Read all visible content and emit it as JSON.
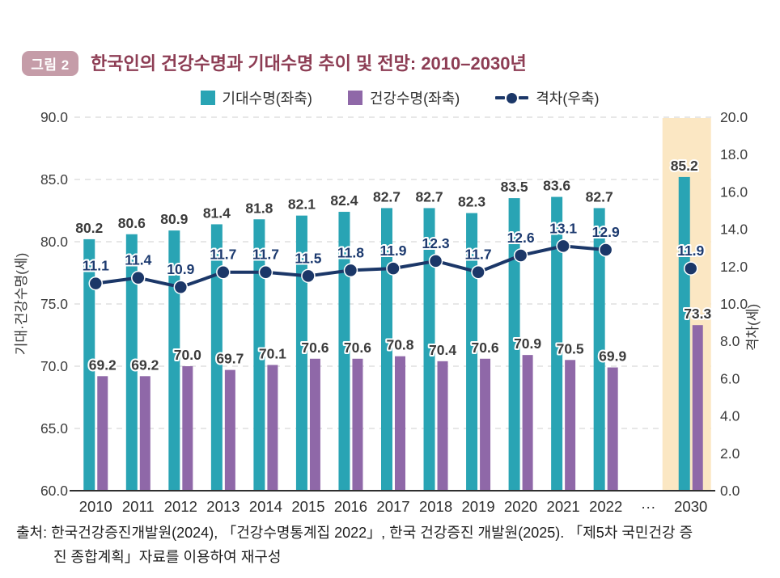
{
  "figure": {
    "badge": "그림 2",
    "title": "한국인의 건강수명과 기대수명 추이 및 전망: 2010–2030년"
  },
  "legend": [
    {
      "label": "기대수명(좌축)",
      "marker": "square",
      "color": "#29A4B4"
    },
    {
      "label": "건강수명(좌축)",
      "marker": "square",
      "color": "#8F68A8"
    },
    {
      "label": "격차(우축)",
      "marker": "line-dot",
      "color": "#1B3768"
    }
  ],
  "chart_data": {
    "type": "bar+line",
    "categories": [
      "2010",
      "2011",
      "2012",
      "2013",
      "2014",
      "2015",
      "2016",
      "2017",
      "2018",
      "2019",
      "2020",
      "2021",
      "2022",
      "···",
      "2030"
    ],
    "series": [
      {
        "name": "기대수명(좌축)",
        "type": "bar",
        "axis": "left",
        "color": "#29A4B4",
        "values": [
          80.2,
          80.6,
          80.9,
          81.4,
          81.8,
          82.1,
          82.4,
          82.7,
          82.7,
          82.3,
          83.5,
          83.6,
          82.7,
          null,
          85.2
        ]
      },
      {
        "name": "건강수명(좌축)",
        "type": "bar",
        "axis": "left",
        "color": "#8F68A8",
        "values": [
          69.2,
          69.2,
          70.0,
          69.7,
          70.1,
          70.6,
          70.6,
          70.8,
          70.4,
          70.6,
          70.9,
          70.5,
          69.9,
          null,
          73.3
        ]
      },
      {
        "name": "격차(우축)",
        "type": "line",
        "axis": "right",
        "color": "#1B3768",
        "label_color": "#1C3A6F",
        "values": [
          11.1,
          11.4,
          10.9,
          11.7,
          11.7,
          11.5,
          11.8,
          11.9,
          12.3,
          11.7,
          12.6,
          13.1,
          12.9,
          null,
          11.9
        ]
      }
    ],
    "left_axis": {
      "label": "기대·건강수명(세)",
      "min": 60,
      "max": 90,
      "step": 5,
      "decimals": 1
    },
    "right_axis": {
      "label": "격차(세)",
      "min": 0,
      "max": 20,
      "step": 2,
      "decimals": 1
    },
    "highlight": {
      "category": "2030",
      "color": "#FBE7C3"
    },
    "grid": "dashed-horizontal",
    "legend_position": "top-center"
  },
  "colors": {
    "badge_bg": "#C59CA8",
    "title_text": "#8D3D54"
  },
  "source": {
    "line1": "출처: 한국건강증진개발원(2024), 「건강수명통계집 2022」, 한국 건강증진 개발원(2025). 「제5차 국민건강 증",
    "line2": "진 종합계획」자료를 이용하여 재구성"
  }
}
